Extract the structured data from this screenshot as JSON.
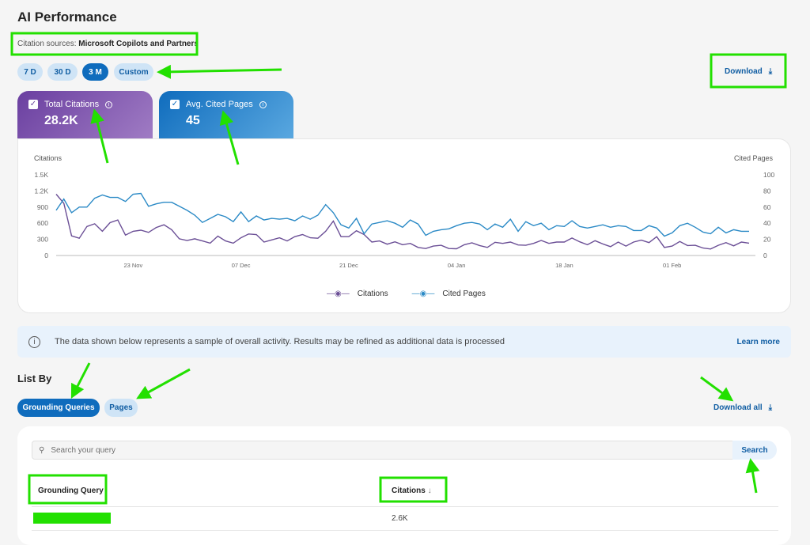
{
  "header": {
    "title": "AI Performance",
    "citation_sources_label": "Citation sources:",
    "citation_sources_value": "Microsoft Copilots and Partners",
    "download_label": "Download"
  },
  "range_filters": [
    {
      "label": "7 D",
      "selected": false
    },
    {
      "label": "30 D",
      "selected": false
    },
    {
      "label": "3 M",
      "selected": true
    },
    {
      "label": "Custom",
      "selected": false
    }
  ],
  "metrics": [
    {
      "label": "Total Citations",
      "value": "28.2K",
      "checked": true,
      "color": "#7a4fa8"
    },
    {
      "label": "Avg. Cited Pages",
      "value": "45",
      "checked": true,
      "color": "#1b80d0"
    }
  ],
  "chart_data": {
    "type": "line",
    "ylabel_left": "Citations",
    "ylabel_right": "Cited Pages",
    "ylim_left": [
      0,
      1500
    ],
    "ylim_right": [
      0,
      100
    ],
    "yticks_left": [
      "0",
      "300",
      "600",
      "900",
      "1.2K",
      "1.5K"
    ],
    "yticks_right": [
      "0",
      "20",
      "40",
      "60",
      "80",
      "100"
    ],
    "xticks": [
      "23 Nov",
      "07 Dec",
      "21 Dec",
      "04 Jan",
      "18 Jan",
      "01 Feb"
    ],
    "grid": false,
    "legend": "bottom",
    "x": [
      "13 Nov",
      "14 Nov",
      "15 Nov",
      "16 Nov",
      "17 Nov",
      "18 Nov",
      "19 Nov",
      "20 Nov",
      "21 Nov",
      "22 Nov",
      "23 Nov",
      "24 Nov",
      "25 Nov",
      "26 Nov",
      "27 Nov",
      "28 Nov",
      "29 Nov",
      "30 Nov",
      "01 Dec",
      "02 Dec",
      "03 Dec",
      "04 Dec",
      "05 Dec",
      "06 Dec",
      "07 Dec",
      "08 Dec",
      "09 Dec",
      "10 Dec",
      "11 Dec",
      "12 Dec",
      "13 Dec",
      "14 Dec",
      "15 Dec",
      "16 Dec",
      "17 Dec",
      "18 Dec",
      "19 Dec",
      "20 Dec",
      "21 Dec",
      "22 Dec",
      "23 Dec",
      "24 Dec",
      "25 Dec",
      "26 Dec",
      "27 Dec",
      "28 Dec",
      "29 Dec",
      "30 Dec",
      "31 Dec",
      "01 Jan",
      "02 Jan",
      "03 Jan",
      "04 Jan",
      "05 Jan",
      "06 Jan",
      "07 Jan",
      "08 Jan",
      "09 Jan",
      "10 Jan",
      "11 Jan",
      "12 Jan",
      "13 Jan",
      "14 Jan",
      "15 Jan",
      "16 Jan",
      "17 Jan",
      "18 Jan",
      "19 Jan",
      "20 Jan",
      "21 Jan",
      "22 Jan",
      "23 Jan",
      "24 Jan",
      "25 Jan",
      "26 Jan",
      "27 Jan",
      "28 Jan",
      "29 Jan",
      "30 Jan",
      "31 Jan",
      "01 Feb",
      "02 Feb",
      "03 Feb",
      "04 Feb",
      "05 Feb",
      "06 Feb",
      "07 Feb",
      "08 Feb",
      "09 Feb",
      "10 Feb",
      "11 Feb"
    ],
    "series": [
      {
        "name": "Citations",
        "axis": "left",
        "color": "#6b4f96",
        "values": [
          1140,
          970,
          365,
          320,
          540,
          590,
          450,
          610,
          660,
          380,
          450,
          470,
          430,
          520,
          570,
          480,
          310,
          280,
          310,
          270,
          230,
          360,
          270,
          230,
          330,
          400,
          390,
          250,
          290,
          330,
          270,
          350,
          390,
          330,
          320,
          450,
          640,
          350,
          350,
          460,
          390,
          250,
          270,
          210,
          255,
          200,
          225,
          150,
          130,
          175,
          190,
          130,
          125,
          200,
          235,
          185,
          150,
          245,
          225,
          250,
          195,
          190,
          225,
          280,
          225,
          250,
          250,
          325,
          255,
          200,
          275,
          215,
          165,
          250,
          175,
          250,
          285,
          240,
          350,
          150,
          175,
          260,
          185,
          190,
          140,
          120,
          190,
          240,
          180,
          250,
          230
        ]
      },
      {
        "name": "Cited Pages",
        "axis": "right",
        "color": "#2b8ac6",
        "values": [
          56,
          70,
          53,
          60,
          60,
          71,
          75,
          72,
          72,
          67,
          76,
          77,
          61,
          64,
          66,
          66,
          61,
          56,
          50,
          41,
          46,
          51,
          48,
          42,
          54,
          42,
          49,
          44,
          46,
          45,
          46,
          43,
          49,
          45,
          50,
          63,
          53,
          38,
          34,
          46,
          27,
          39,
          41,
          43,
          40,
          35,
          44,
          39,
          25,
          30,
          32,
          33,
          37,
          40,
          41,
          39,
          32,
          39,
          35,
          45,
          30,
          42,
          37,
          40,
          32,
          37,
          36,
          43,
          36,
          34,
          36,
          38,
          35,
          37,
          36,
          31,
          31,
          37,
          34,
          24,
          28,
          37,
          40,
          35,
          29,
          27,
          35,
          28,
          32,
          30,
          30
        ]
      }
    ]
  },
  "banner": {
    "text": "The data shown below represents a sample of overall activity. Results may be refined as additional data is processed",
    "link": "Learn more"
  },
  "list_by": {
    "title": "List By",
    "tabs": [
      {
        "label": "Grounding Queries",
        "selected": true
      },
      {
        "label": "Pages",
        "selected": false
      }
    ],
    "download_all": "Download all"
  },
  "table": {
    "search_placeholder": "Search your query",
    "search_button": "Search",
    "columns": [
      "Grounding Query",
      "Citations"
    ],
    "rows": [
      {
        "query": "",
        "citations": "2.6K"
      }
    ]
  },
  "annotation_color": "#22e000"
}
